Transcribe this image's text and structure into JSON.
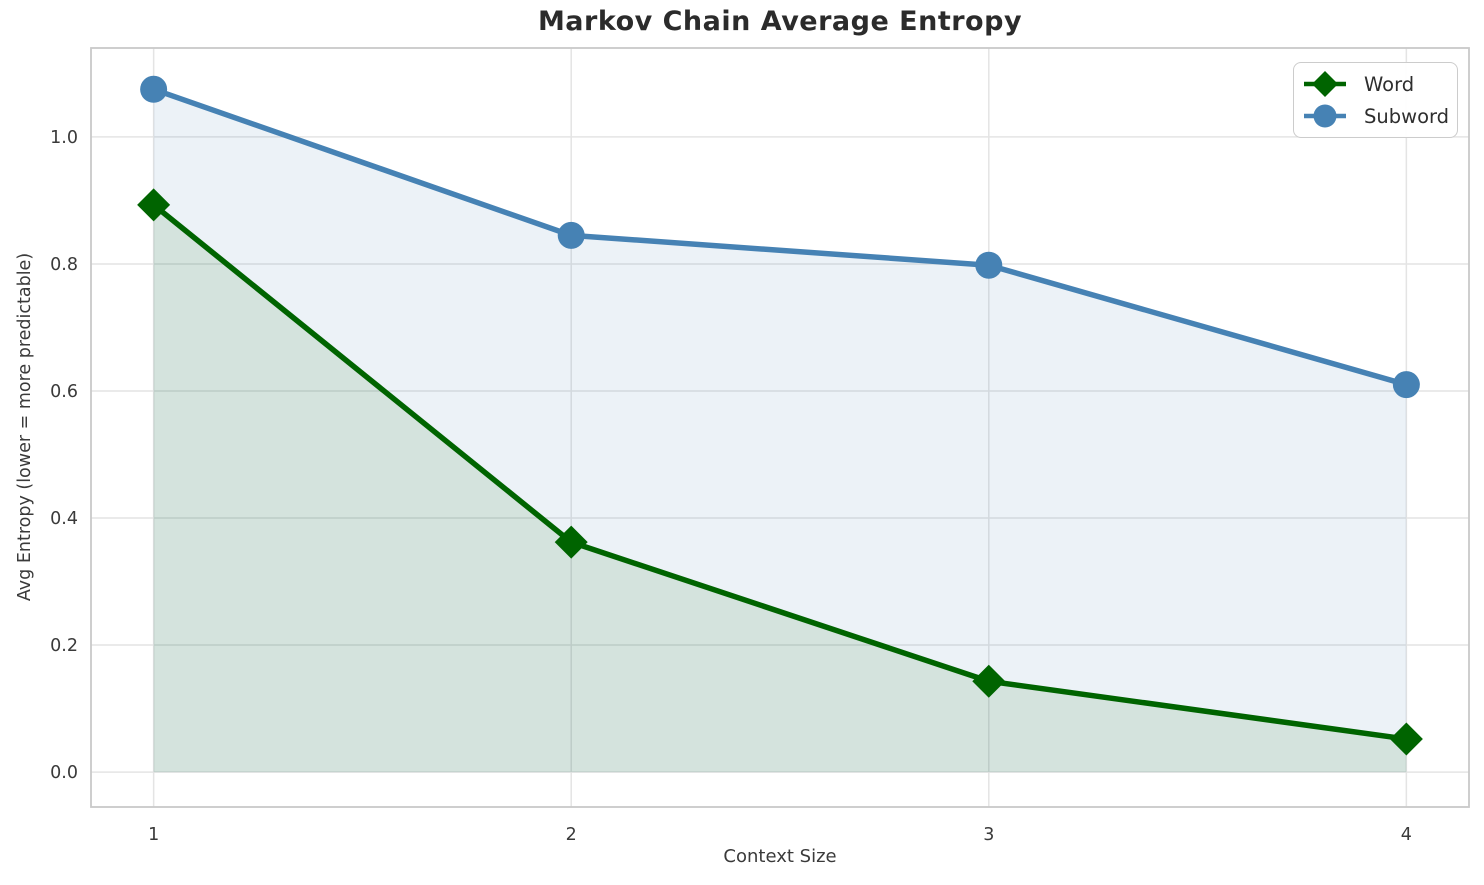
{
  "chart_data": {
    "type": "line",
    "title": "Markov Chain Average Entropy",
    "xlabel": "Context Size",
    "ylabel": "Avg Entropy (lower = more predictable)",
    "x": [
      1,
      2,
      3,
      4
    ],
    "series": [
      {
        "name": "Word",
        "values": [
          0.893,
          0.362,
          0.143,
          0.052
        ],
        "color": "#006400",
        "marker": "diamond",
        "fill_to_zero": true
      },
      {
        "name": "Subword",
        "values": [
          1.075,
          0.845,
          0.798,
          0.61
        ],
        "color": "#4682b4",
        "marker": "circle",
        "fill_to_zero": true
      }
    ],
    "xticks": [
      "1",
      "2",
      "3",
      "4"
    ],
    "yticks": [
      "0.0",
      "0.2",
      "0.4",
      "0.6",
      "0.8",
      "1.0"
    ],
    "xlim": [
      0.85,
      4.15
    ],
    "ylim": [
      -0.055,
      1.14
    ],
    "grid": true,
    "legend_position": "upper right",
    "fill_alpha": 0.1,
    "style": {
      "grid_color": "#e4e4e4",
      "spine_color": "#c9c9c9",
      "tick_text_color": "#3a3a3a",
      "title_color": "#2b2b2b"
    }
  }
}
